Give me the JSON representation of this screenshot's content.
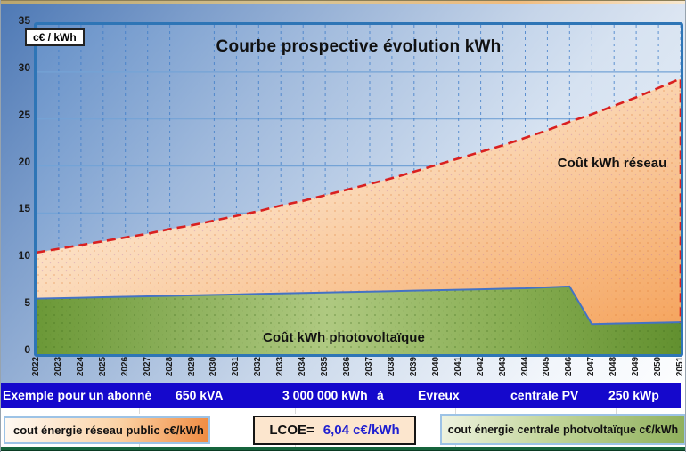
{
  "chart": {
    "title": "Courbe prospective évolution kWh",
    "unit_label": "c€ / kWh",
    "area_label_reseau": "Coût kWh réseau",
    "area_label_pv": "Coût kWh photovoltaïque"
  },
  "chart_data": {
    "type": "area",
    "title": "Courbe prospective évolution kWh",
    "xlabel": "",
    "ylabel": "c€ / kWh",
    "ylim": [
      0,
      35
    ],
    "y_ticks": [
      0,
      5,
      10,
      15,
      20,
      25,
      30,
      35
    ],
    "grid": "horizontal solid light blue, vertical dashed blue",
    "legend_position": "labels inside plot",
    "x": [
      2022,
      2023,
      2024,
      2025,
      2026,
      2027,
      2028,
      2029,
      2030,
      2031,
      2032,
      2033,
      2034,
      2035,
      2036,
      2037,
      2038,
      2039,
      2040,
      2041,
      2042,
      2043,
      2044,
      2045,
      2046,
      2047,
      2048,
      2049,
      2050,
      2051
    ],
    "series": [
      {
        "name": "cout énergie réseau public c€/kWh",
        "area_color": "orange gradient",
        "boundary_line": "red dashed",
        "values": [
          10.8,
          11.2,
          11.6,
          12.0,
          12.4,
          12.8,
          13.3,
          13.7,
          14.2,
          14.7,
          15.2,
          15.8,
          16.3,
          16.9,
          17.5,
          18.1,
          18.7,
          19.4,
          20.1,
          20.8,
          21.5,
          22.2,
          23.0,
          23.8,
          24.7,
          25.5,
          26.4,
          27.3,
          28.3,
          29.3
        ]
      },
      {
        "name": "cout énergie centrale photvoltaïque c€/kWh",
        "area_color": "green gradient",
        "boundary_line": "blue solid",
        "values": [
          5.9,
          5.95,
          6.0,
          6.05,
          6.1,
          6.15,
          6.2,
          6.25,
          6.3,
          6.35,
          6.4,
          6.45,
          6.5,
          6.55,
          6.6,
          6.65,
          6.7,
          6.75,
          6.8,
          6.85,
          6.9,
          6.95,
          7.0,
          7.1,
          7.2,
          3.2,
          3.25,
          3.3,
          3.35,
          3.4
        ]
      }
    ]
  },
  "banner": {
    "segments": [
      {
        "text": "Exemple pour un abonné"
      },
      {
        "text": "650 kVA"
      },
      {
        "text": "3 000 000 kWh"
      },
      {
        "text": "à"
      },
      {
        "text": "Evreux"
      },
      {
        "text": "centrale PV"
      },
      {
        "text": "250 kWp"
      }
    ]
  },
  "legend": {
    "reseau_label": "cout énergie réseau public c€/kWh",
    "lcoe_label": "LCOE=",
    "lcoe_value": "6,04 c€/kWh",
    "pv_label": "cout énergie centrale photvoltaïque c€/kWh"
  },
  "colors": {
    "banner_blue": "#1508cc",
    "plot_border_blue": "#2e75b6",
    "red_dashed_line": "#d92020",
    "pv_line_blue": "#4472c4",
    "orange_area_light": "#fdf2e6",
    "orange_area_deep": "#f5a55f",
    "green_area_dark": "#6b9837",
    "green_area_light": "#afc981",
    "lcoe_value_blue": "#1f1fd0",
    "lcoe_box_bg": "#fce6ce",
    "bottom_bar_green": "#15643c",
    "grid_vertical_blue": "#3f7dc9",
    "grid_horizontal_blue": "#74a3d6"
  }
}
